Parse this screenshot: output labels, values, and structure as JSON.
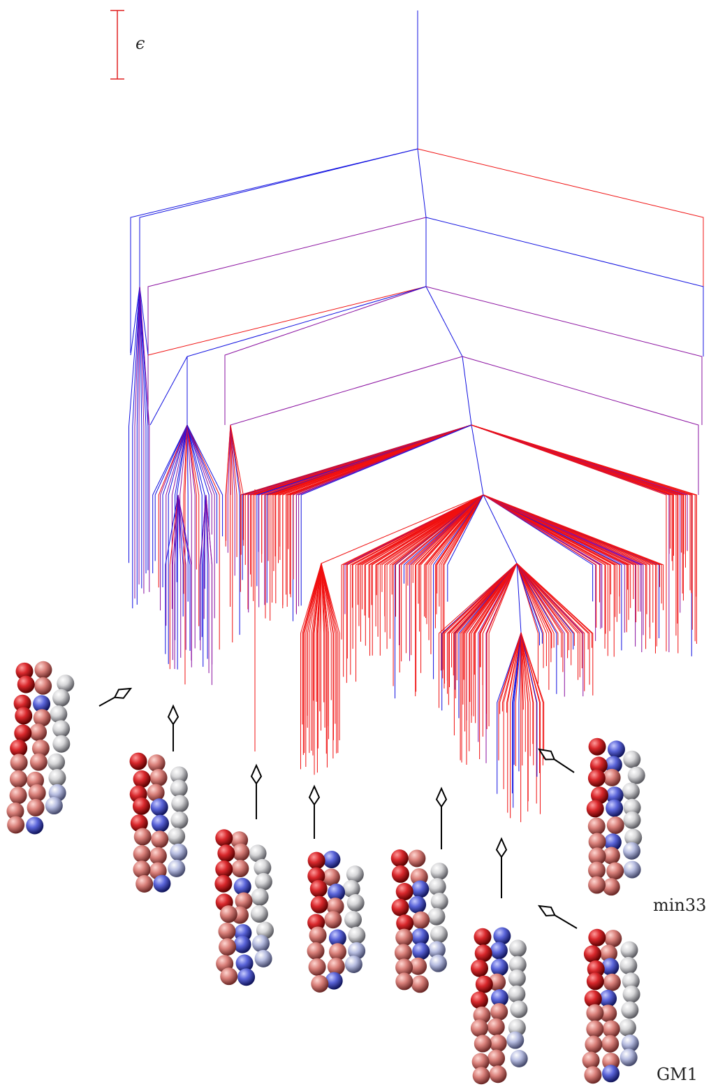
{
  "scale_bar": {
    "label": "ϵ"
  },
  "structure_labels": [
    "min33",
    "GM1"
  ]
}
